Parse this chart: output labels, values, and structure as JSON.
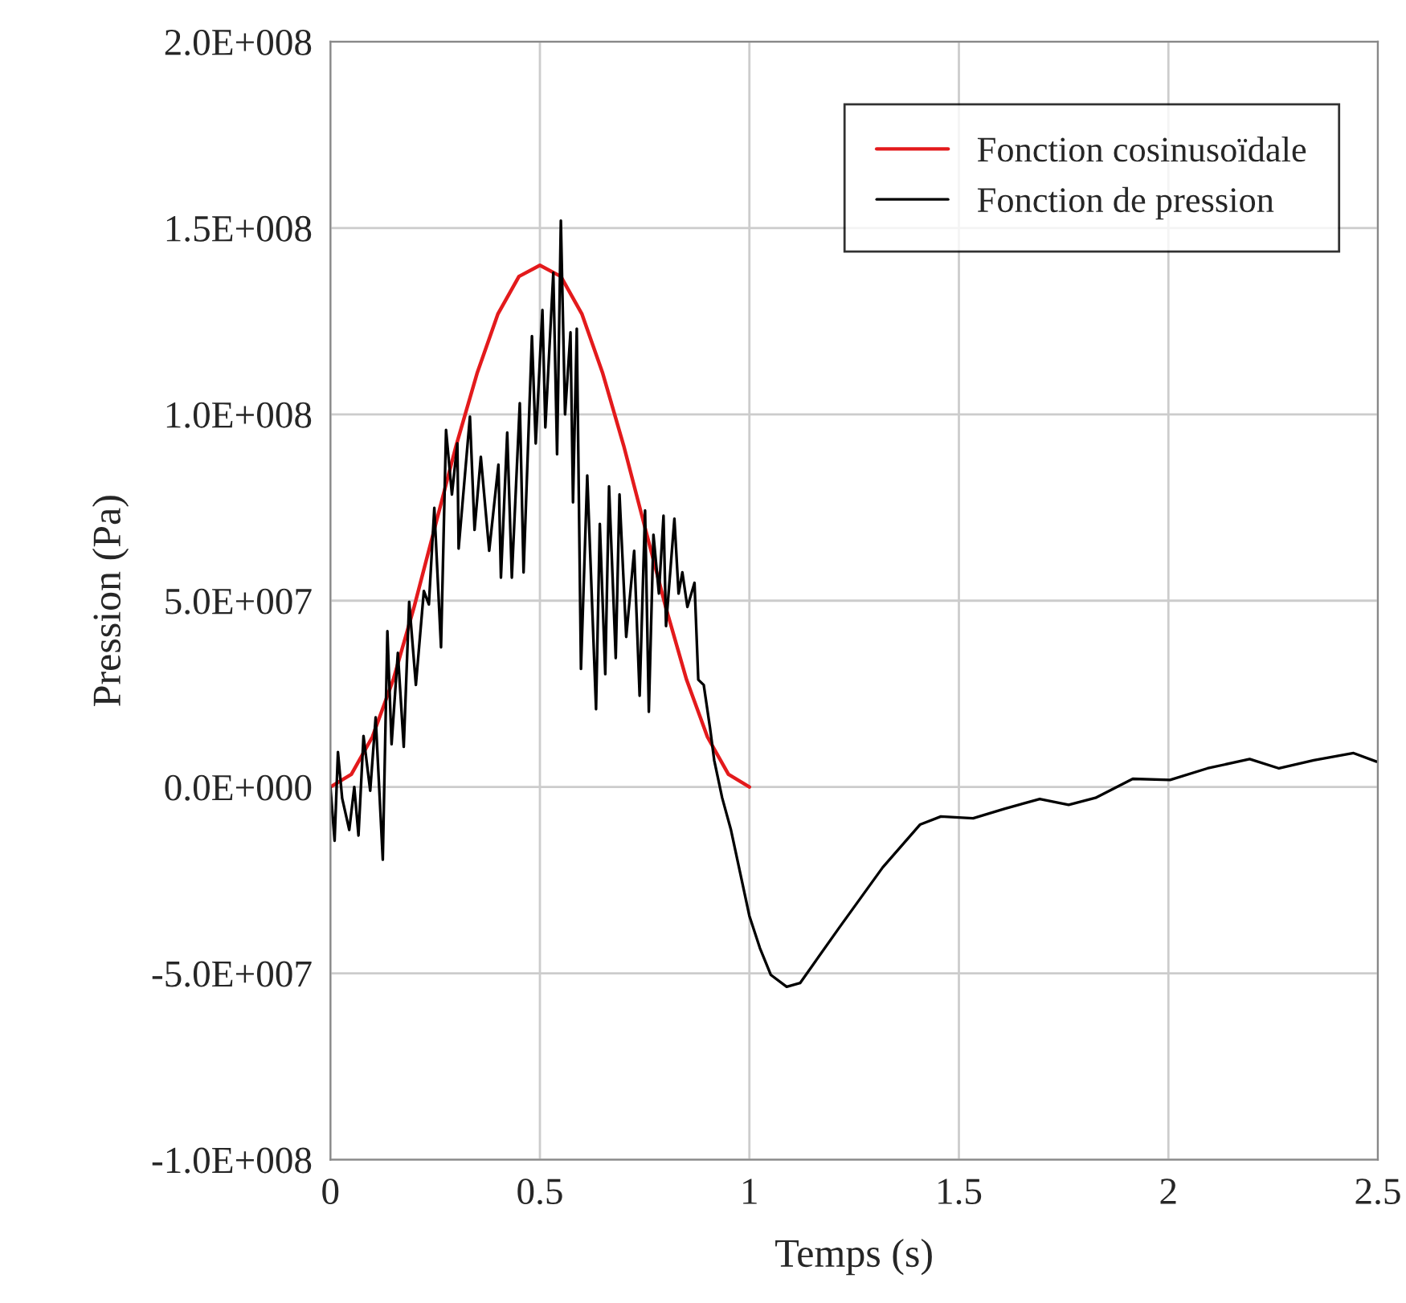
{
  "chart_data": {
    "type": "line",
    "xlabel": "Temps (s)",
    "ylabel": "Pression (Pa)",
    "xlim": [
      0,
      2.5
    ],
    "xticks": [
      0,
      0.5,
      1,
      1.5,
      2,
      2.5
    ],
    "ylim": [
      -100000000,
      200000000
    ],
    "yticks": [
      {
        "value": -100000000,
        "label": "-1.0E+008"
      },
      {
        "value": -50000000,
        "label": "-5.0E+007"
      },
      {
        "value": 0,
        "label": "0.0E+000"
      },
      {
        "value": 50000000,
        "label": "5.0E+007"
      },
      {
        "value": 100000000,
        "label": "1.0E+008"
      },
      {
        "value": 150000000,
        "label": "1.5E+008"
      },
      {
        "value": 200000000,
        "label": "2.0E+008"
      }
    ],
    "grid": true,
    "legend": "top right",
    "marker": "none",
    "line_style": "solid",
    "series": [
      {
        "name": "Fonction cosinusoïdale",
        "color": "#e31a1c",
        "x": [
          0,
          0.05,
          0.1,
          0.15,
          0.2,
          0.25,
          0.3,
          0.35,
          0.4,
          0.45,
          0.5,
          0.55,
          0.6,
          0.65,
          0.7,
          0.75,
          0.8,
          0.85,
          0.9,
          0.95,
          1.0
        ],
        "values": [
          0,
          3400000,
          13400000,
          28800000,
          48400000,
          70000000,
          91600000,
          111000000,
          127000000,
          137000000,
          140000000,
          137000000,
          127000000,
          111000000,
          91600000,
          70000000,
          48400000,
          28800000,
          13400000,
          3400000,
          0
        ]
      },
      {
        "name": "Fonction de pression",
        "color": "#000000",
        "x": [
          0,
          0.01,
          0.018,
          0.028,
          0.045,
          0.057,
          0.067,
          0.079,
          0.095,
          0.108,
          0.125,
          0.136,
          0.146,
          0.161,
          0.175,
          0.188,
          0.204,
          0.223,
          0.235,
          0.248,
          0.264,
          0.276,
          0.29,
          0.303,
          0.306,
          0.333,
          0.344,
          0.359,
          0.379,
          0.401,
          0.407,
          0.422,
          0.433,
          0.452,
          0.461,
          0.481,
          0.49,
          0.506,
          0.513,
          0.532,
          0.541,
          0.55,
          0.56,
          0.573,
          0.579,
          0.588,
          0.598,
          0.613,
          0.634,
          0.643,
          0.656,
          0.665,
          0.681,
          0.69,
          0.706,
          0.725,
          0.738,
          0.751,
          0.76,
          0.771,
          0.784,
          0.795,
          0.801,
          0.821,
          0.831,
          0.84,
          0.852,
          0.869,
          0.878,
          0.891,
          0.906,
          0.916,
          0.935,
          0.956,
          1.0,
          1.025,
          1.051,
          1.089,
          1.121,
          1.216,
          1.318,
          1.407,
          1.457,
          1.534,
          1.61,
          1.693,
          1.762,
          1.826,
          1.915,
          2.004,
          2.093,
          2.194,
          2.264,
          2.347,
          2.442,
          2.497
        ],
        "values": [
          0,
          -14400000,
          9400000,
          -3000000,
          -11500000,
          0,
          -13000000,
          13700000,
          -1000000,
          18700000,
          -19500000,
          41800000,
          11500000,
          36000000,
          10800000,
          49700000,
          27400000,
          52600000,
          49000000,
          74900000,
          37500000,
          95800000,
          78500000,
          92200000,
          64000000,
          99400000,
          69000000,
          88600000,
          63400000,
          86500000,
          56200000,
          95100000,
          56200000,
          103000000,
          57600000,
          121000000,
          92200000,
          128000000,
          96500000,
          138000000,
          89300000,
          152000000,
          100000000,
          122000000,
          76400000,
          123000000,
          31700000,
          83600000,
          20900000,
          70600000,
          30300000,
          80700000,
          34600000,
          78500000,
          40300000,
          63400000,
          24500000,
          74200000,
          20200000,
          67700000,
          51900000,
          72800000,
          43200000,
          72000000,
          51900000,
          57600000,
          48300000,
          54800000,
          28800000,
          27400000,
          15900000,
          7200000,
          -2900000,
          -11500000,
          -34600000,
          -43200000,
          -50400000,
          -53600000,
          -52600000,
          -37500000,
          -21600000,
          -10100000,
          -7900000,
          -8400000,
          -5800000,
          -3200000,
          -4800000,
          -2900000,
          2200000,
          1900000,
          5000000,
          7500000,
          5000000,
          7200000,
          9100000,
          6800000
        ]
      }
    ]
  }
}
